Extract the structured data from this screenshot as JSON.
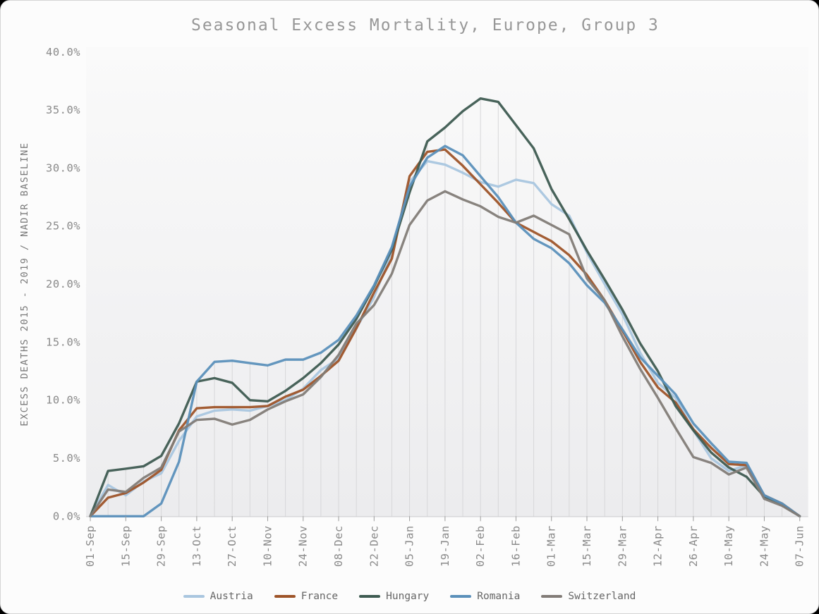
{
  "chart_data": {
    "type": "line",
    "title": "Seasonal Excess Mortality, Europe, Group 3",
    "ylabel": "EXCESS DEATHS 2015 - 2019 / NADIR BASELINE",
    "xlabel": "",
    "ylim": [
      0,
      40
    ],
    "ytick_step": 5,
    "ytick_format": "percent_one_decimal",
    "x_label_every": 2,
    "grid": "weekly vertical droplines up to max series value",
    "legend_position": "bottom-center",
    "figure_background": "#fcfcfc",
    "plot_background_top": "#fafafa",
    "plot_background_bottom": "#ececee",
    "dropline_color": "#d7d7d9",
    "baseline_color": "#c9c9cb",
    "text_color": "#8a8a8a",
    "categories": [
      "01-Sep",
      "08-Sep",
      "15-Sep",
      "22-Sep",
      "29-Sep",
      "06-Oct",
      "13-Oct",
      "20-Oct",
      "27-Oct",
      "03-Nov",
      "10-Nov",
      "17-Nov",
      "24-Nov",
      "01-Dec",
      "08-Dec",
      "15-Dec",
      "22-Dec",
      "29-Dec",
      "05-Jan",
      "12-Jan",
      "19-Jan",
      "26-Jan",
      "02-Feb",
      "09-Feb",
      "16-Feb",
      "23-Feb",
      "01-Mar",
      "08-Mar",
      "15-Mar",
      "22-Mar",
      "29-Mar",
      "05-Apr",
      "12-Apr",
      "19-Apr",
      "26-Apr",
      "03-May",
      "10-May",
      "17-May",
      "24-May",
      "31-May",
      "07-Jun"
    ],
    "series": [
      {
        "name": "Austria",
        "color": "#a9c6df",
        "values": [
          0.0,
          2.7,
          1.8,
          3.0,
          3.7,
          6.5,
          8.6,
          9.1,
          9.2,
          9.1,
          9.5,
          10.0,
          11.0,
          12.6,
          13.6,
          16.2,
          18.9,
          22.8,
          28.8,
          30.6,
          30.3,
          29.6,
          28.8,
          28.4,
          29.0,
          28.7,
          26.9,
          25.9,
          22.7,
          20.0,
          17.4,
          14.1,
          11.5,
          10.2,
          7.4,
          5.0,
          3.9,
          4.4,
          1.8,
          1.0,
          0.0
        ]
      },
      {
        "name": "France",
        "color": "#9e5429",
        "values": [
          0.0,
          1.6,
          2.0,
          2.9,
          4.0,
          7.4,
          9.3,
          9.4,
          9.4,
          9.4,
          9.5,
          10.3,
          10.9,
          12.1,
          13.4,
          16.2,
          19.3,
          22.2,
          29.3,
          31.4,
          31.6,
          30.2,
          28.6,
          27.0,
          25.3,
          24.5,
          23.7,
          22.5,
          20.8,
          18.6,
          16.0,
          13.3,
          11.1,
          9.8,
          7.5,
          5.9,
          4.5,
          4.4,
          1.8,
          1.1,
          0.0
        ]
      },
      {
        "name": "Hungary",
        "color": "#3e5b51",
        "values": [
          0.0,
          3.9,
          4.1,
          4.3,
          5.2,
          8.0,
          11.6,
          11.9,
          11.5,
          10.0,
          9.9,
          10.8,
          11.9,
          13.2,
          14.8,
          17.0,
          19.8,
          23.0,
          27.9,
          32.3,
          33.5,
          34.9,
          36.0,
          35.7,
          33.7,
          31.7,
          28.2,
          25.6,
          22.9,
          20.4,
          17.8,
          14.9,
          12.5,
          9.5,
          7.4,
          5.5,
          4.2,
          3.4,
          1.7,
          1.0,
          0.0
        ]
      },
      {
        "name": "Romania",
        "color": "#5b90ba",
        "values": [
          0.0,
          0.0,
          0.0,
          0.0,
          1.1,
          4.7,
          11.6,
          13.3,
          13.4,
          13.2,
          13.0,
          13.5,
          13.5,
          14.1,
          15.2,
          17.3,
          19.9,
          23.2,
          28.4,
          30.9,
          31.9,
          31.1,
          29.3,
          27.5,
          25.3,
          23.9,
          23.1,
          21.8,
          19.9,
          18.4,
          16.1,
          13.7,
          12.1,
          10.5,
          8.0,
          6.3,
          4.7,
          4.6,
          1.8,
          1.1,
          0.0
        ]
      },
      {
        "name": "Switzerland",
        "color": "#827c77",
        "values": [
          0.0,
          2.3,
          2.1,
          3.3,
          4.2,
          7.3,
          8.3,
          8.4,
          7.9,
          8.3,
          9.2,
          9.9,
          10.5,
          12.0,
          13.9,
          16.6,
          18.2,
          20.9,
          25.1,
          27.2,
          28.0,
          27.3,
          26.7,
          25.8,
          25.3,
          25.9,
          25.1,
          24.3,
          20.5,
          18.6,
          15.5,
          12.7,
          10.2,
          7.6,
          5.1,
          4.6,
          3.6,
          4.2,
          1.5,
          0.9,
          0.0
        ]
      }
    ]
  }
}
